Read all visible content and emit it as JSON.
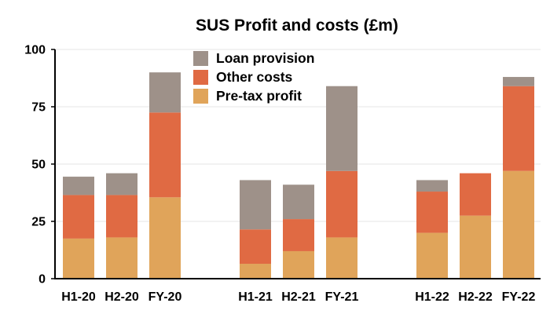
{
  "chart_data": {
    "type": "bar",
    "stacked": true,
    "title": "SUS Profit and costs (£m)",
    "xlabel": "",
    "ylabel": "",
    "ylim": [
      0,
      100
    ],
    "yticks": [
      0,
      25,
      50,
      75,
      100
    ],
    "grid": true,
    "legend_position": "top-center",
    "categories": [
      "H1-20",
      "H2-20",
      "FY-20",
      "H1-21",
      "H2-21",
      "FY-21",
      "H1-22",
      "H2-22",
      "FY-22"
    ],
    "category_groups": [
      [
        "H1-20",
        "H2-20",
        "FY-20"
      ],
      [
        "H1-21",
        "H2-21",
        "FY-21"
      ],
      [
        "H1-22",
        "H2-22",
        "FY-22"
      ]
    ],
    "series": [
      {
        "name": "Pre-tax profit",
        "color": "#e0a45a",
        "values": [
          17.5,
          18,
          35.5,
          6.5,
          12,
          18,
          20,
          27.5,
          47
        ]
      },
      {
        "name": "Other costs",
        "color": "#e06a43",
        "values": [
          19,
          18.5,
          37,
          15,
          14,
          29,
          18,
          18.5,
          37
        ]
      },
      {
        "name": "Loan provision",
        "color": "#9e9189",
        "values": [
          8,
          9.5,
          17.5,
          21.5,
          15,
          37,
          5,
          0,
          4
        ]
      }
    ]
  }
}
